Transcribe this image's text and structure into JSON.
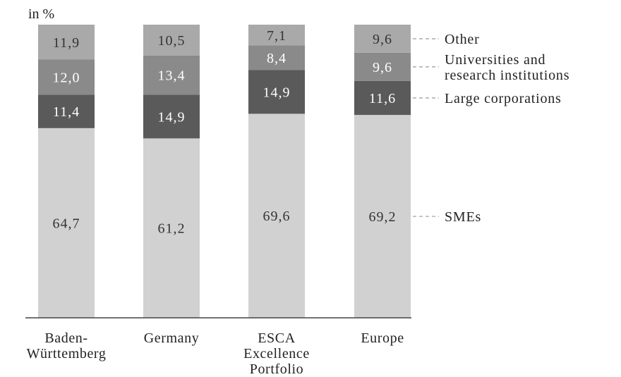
{
  "chart_data": {
    "type": "bar",
    "stacked": true,
    "unit_label": "in %",
    "categories": [
      "Baden-\nWürttemberg",
      "Germany",
      "ESCA\nExcellence\nPortfolio",
      "Europe"
    ],
    "series": [
      {
        "name": "SMEs",
        "values": [
          64.7,
          61.2,
          69.6,
          69.2
        ],
        "labels": [
          "64,7",
          "61,2",
          "69,6",
          "69,2"
        ],
        "color": "#d1d1d1",
        "label_color": "#333333"
      },
      {
        "name": "Large corporations",
        "values": [
          11.4,
          14.9,
          14.9,
          11.6
        ],
        "labels": [
          "11,4",
          "14,9",
          "14,9",
          "11,6"
        ],
        "color": "#5a5a5a",
        "label_color": "#ffffff"
      },
      {
        "name": "Universities and\nresearch institutions",
        "values": [
          12.0,
          13.4,
          8.4,
          9.6
        ],
        "labels": [
          "12,0",
          "13,4",
          "8,4",
          "9,6"
        ],
        "color": "#8a8a8a",
        "label_color": "#ffffff"
      },
      {
        "name": "Other",
        "values": [
          11.9,
          10.5,
          7.1,
          9.6
        ],
        "labels": [
          "11,9",
          "10,5",
          "7,1",
          "9,6"
        ],
        "color": "#a9a9a9",
        "label_color": "#333333"
      }
    ],
    "ylim": [
      0,
      100
    ],
    "grid": false,
    "legend": "right"
  },
  "colors": {
    "axis": "#444444",
    "leader": "#9a9a9a",
    "text": "#222222"
  }
}
